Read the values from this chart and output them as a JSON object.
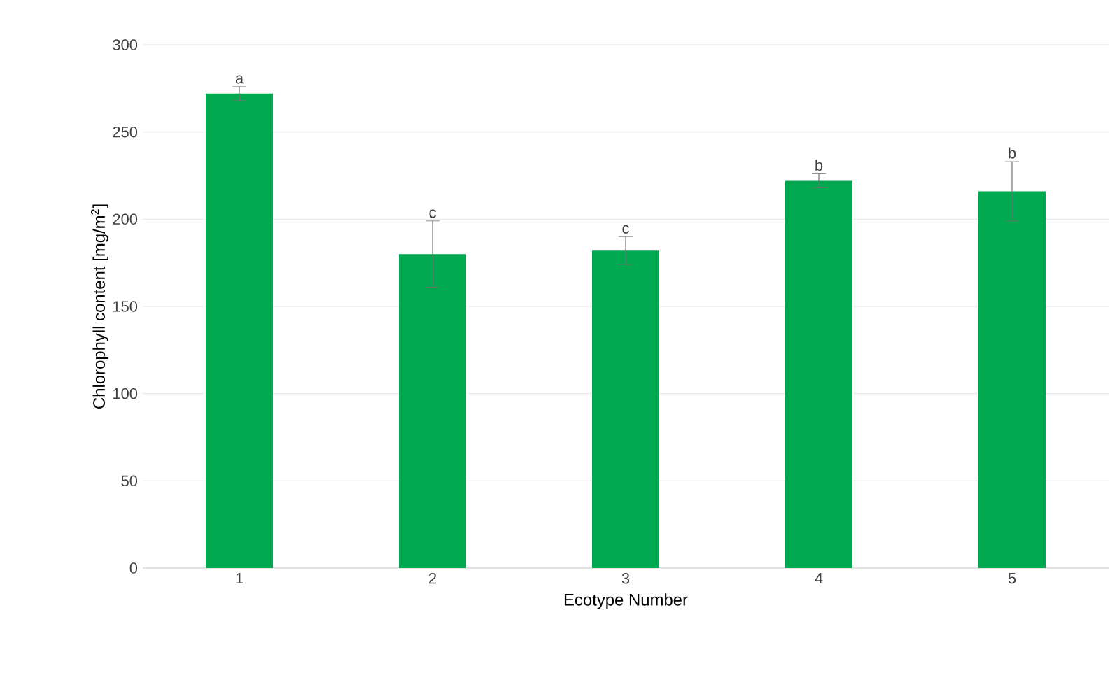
{
  "chart_data": {
    "type": "bar",
    "xlabel": "Ecotype Number",
    "ylabel": "Chlorophyll content [mg/m$^{2}$]",
    "categories": [
      "1",
      "2",
      "3",
      "4",
      "5"
    ],
    "values": [
      272,
      180,
      182,
      222,
      216
    ],
    "errors": [
      4,
      19,
      8,
      4,
      17
    ],
    "color": "#00a84f",
    "ylim": [
      0,
      300
    ],
    "yticks": [
      0,
      50,
      100,
      150,
      200,
      250,
      300
    ],
    "grid": "y",
    "annotations": [
      {
        "text": "a",
        "x": "1",
        "y": 276
      },
      {
        "text": "c",
        "x": "2",
        "y": 199
      },
      {
        "text": "c",
        "x": "3",
        "y": 190
      },
      {
        "text": "b",
        "x": "4",
        "y": 226
      },
      {
        "text": "b",
        "x": "5",
        "y": 233
      }
    ]
  }
}
